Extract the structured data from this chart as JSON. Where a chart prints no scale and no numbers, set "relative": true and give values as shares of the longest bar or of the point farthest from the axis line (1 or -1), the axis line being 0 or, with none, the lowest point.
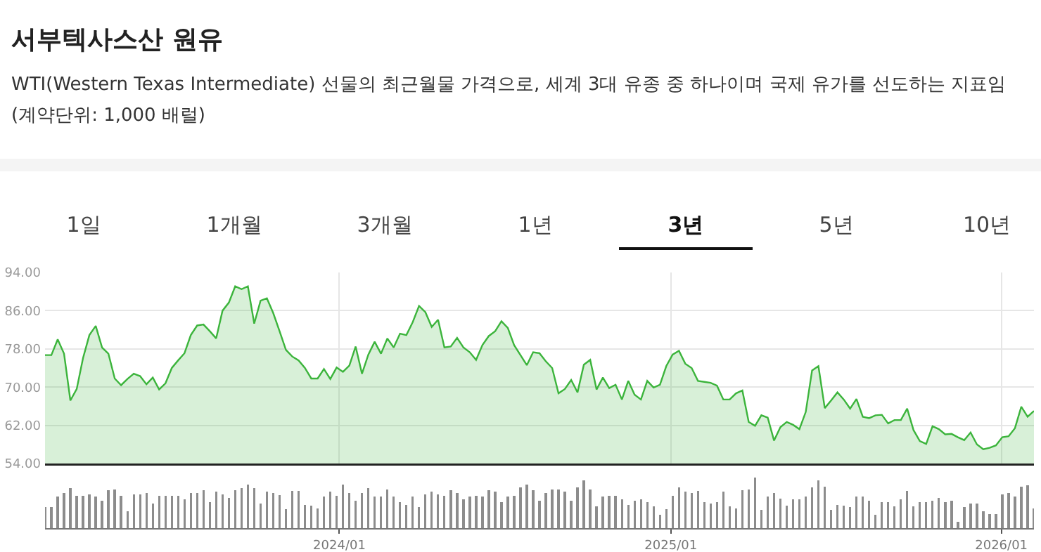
{
  "chart_data": [
    {
      "type": "area",
      "title": "서부텍사스산 원유",
      "subtitle": "WTI(Western Texas Intermediate) 선물의 최근월물 가격으로, 세계 3대 유종 중 하나이며 국제 유가를 선도하는 지표임 (계약단위: 1,000 배럴)",
      "annotations": [
        "1일",
        "1개월",
        "3개월",
        "1년",
        "3년",
        "5년",
        "10년"
      ],
      "x": [
        "2023-02-10",
        "2023-02-17",
        "2023-02-24",
        "2023-03-03",
        "2023-03-10",
        "2023-03-17",
        "2023-03-24",
        "2023-03-31",
        "2023-04-07",
        "2023-04-14",
        "2023-04-21",
        "2023-04-28",
        "2023-05-05",
        "2023-05-12",
        "2023-05-19",
        "2023-05-26",
        "2023-06-02",
        "2023-06-09",
        "2023-06-16",
        "2023-06-23",
        "2023-06-30",
        "2023-07-07",
        "2023-07-14",
        "2023-07-21",
        "2023-07-28",
        "2023-08-04",
        "2023-08-11",
        "2023-08-18",
        "2023-08-25",
        "2023-09-01",
        "2023-09-08",
        "2023-09-15",
        "2023-09-22",
        "2023-09-29",
        "2023-10-06",
        "2023-10-13",
        "2023-10-20",
        "2023-10-27",
        "2023-11-03",
        "2023-11-10",
        "2023-11-17",
        "2023-11-24",
        "2023-12-01",
        "2023-12-08",
        "2023-12-15",
        "2023-12-22",
        "2023-12-29",
        "2024-01-05",
        "2024-01-12",
        "2024-01-19",
        "2024-01-26",
        "2024-02-02",
        "2024-02-09",
        "2024-02-16",
        "2024-02-23",
        "2024-03-01",
        "2024-03-08",
        "2024-03-15",
        "2024-03-22",
        "2024-03-29",
        "2024-04-05",
        "2024-04-12",
        "2024-04-19",
        "2024-04-26",
        "2024-05-03",
        "2024-05-10",
        "2024-05-17",
        "2024-05-24",
        "2024-05-31",
        "2024-06-07",
        "2024-06-14",
        "2024-06-21",
        "2024-06-28",
        "2024-07-05",
        "2024-07-12",
        "2024-07-19",
        "2024-07-26",
        "2024-08-02",
        "2024-08-09",
        "2024-08-16",
        "2024-08-23",
        "2024-08-30",
        "2024-09-06",
        "2024-09-13",
        "2024-09-20",
        "2024-09-27",
        "2024-10-04",
        "2024-10-11",
        "2024-10-18",
        "2024-10-25",
        "2024-11-01",
        "2024-11-08",
        "2024-11-15",
        "2024-11-22",
        "2024-11-29",
        "2024-12-06",
        "2024-12-13",
        "2024-12-20",
        "2024-12-27",
        "2025-01-03",
        "2025-01-10",
        "2025-01-17",
        "2025-01-24",
        "2025-01-31",
        "2025-02-07",
        "2025-02-14",
        "2025-02-21",
        "2025-02-28",
        "2025-03-07",
        "2025-03-14",
        "2025-03-21",
        "2025-03-28",
        "2025-04-04",
        "2025-04-11",
        "2025-04-18",
        "2025-04-25",
        "2025-05-02",
        "2025-05-09",
        "2025-05-16",
        "2025-05-23",
        "2025-05-30",
        "2025-06-06",
        "2025-06-13",
        "2025-06-20",
        "2025-06-27",
        "2025-07-04",
        "2025-07-11",
        "2025-07-18",
        "2025-07-25",
        "2025-08-01",
        "2025-08-08",
        "2025-08-15",
        "2025-08-22",
        "2025-08-29",
        "2025-09-05",
        "2025-09-12",
        "2025-09-19",
        "2025-09-26",
        "2025-10-03",
        "2025-10-10",
        "2025-10-17",
        "2025-10-24",
        "2025-10-31",
        "2025-11-07",
        "2025-11-14",
        "2025-11-21",
        "2025-11-28",
        "2025-12-05",
        "2025-12-12",
        "2025-12-19",
        "2025-12-26",
        "2026-01-02",
        "2026-01-09",
        "2026-01-16",
        "2026-01-23",
        "2026-01-30",
        "2026-02-06"
      ],
      "series": [
        {
          "color": "#3cb43c",
          "values": [
            76.7,
            76.7,
            80.0,
            77.0,
            67.2,
            69.6,
            76.1,
            80.9,
            82.8,
            78.3,
            77.0,
            71.8,
            70.4,
            71.7,
            72.8,
            72.3,
            70.6,
            72.0,
            69.5,
            70.8,
            74.0,
            75.6,
            77.1,
            80.9,
            82.9,
            83.1,
            81.7,
            80.2,
            86.0,
            87.7,
            91.1,
            90.5,
            91.1,
            83.3,
            88.1,
            88.6,
            85.5,
            81.7,
            77.8,
            76.4,
            75.6,
            74.0,
            71.8,
            71.8,
            73.8,
            71.7,
            74.1,
            73.2,
            74.5,
            78.5,
            72.8,
            76.8,
            79.5,
            77.0,
            80.2,
            78.3,
            81.2,
            80.9,
            83.6,
            87.0,
            85.7,
            82.6,
            84.1,
            78.3,
            78.5,
            80.3,
            78.3,
            77.3,
            75.7,
            78.8,
            80.7,
            81.7,
            83.8,
            82.4,
            78.8,
            76.7,
            74.6,
            77.3,
            77.1,
            75.4,
            74.0,
            68.7,
            69.6,
            71.5,
            68.9,
            74.7,
            75.7,
            69.5,
            72.0,
            69.8,
            70.5,
            67.4,
            71.3,
            68.4,
            67.4,
            71.3,
            69.9,
            70.5,
            74.4,
            76.8,
            77.6,
            74.9,
            74.0,
            71.3,
            71.1,
            70.9,
            70.3,
            67.4,
            67.4,
            68.7,
            69.3,
            62.7,
            61.9,
            64.1,
            63.6,
            58.8,
            61.6,
            62.7,
            62.1,
            61.2,
            64.8,
            73.5,
            74.4,
            65.6,
            67.2,
            68.9,
            67.4,
            65.5,
            67.5,
            63.8,
            63.5,
            64.1,
            64.2,
            62.4,
            63.1,
            63.1,
            65.5,
            61.0,
            58.7,
            58.1,
            61.8,
            61.2,
            60.1,
            60.2,
            59.5,
            58.9,
            60.5,
            58.0,
            57.0,
            57.3,
            57.8,
            59.5,
            59.7,
            61.4,
            65.9,
            63.8,
            65.0
          ]
        }
      ],
      "xlim": [
        "2023-02-10",
        "2026-02-06"
      ],
      "xticks": [
        {
          "value": "2024-01-01",
          "label": null
        },
        {
          "value": "2025-01-01",
          "label": null
        },
        {
          "value": "2026-01-01",
          "label": null
        }
      ],
      "ylim": [
        54,
        94
      ],
      "yticks": [
        {
          "value": 54,
          "label": "54.00"
        },
        {
          "value": 62,
          "label": "62.00"
        },
        {
          "value": 70,
          "label": "70.00"
        },
        {
          "value": 78,
          "label": "78.00"
        },
        {
          "value": 86,
          "label": "86.00"
        },
        {
          "value": 94,
          "label": "94.00"
        }
      ],
      "grid": true,
      "tick_labels": "y"
    },
    {
      "type": "bar",
      "relative": true,
      "tick_labels": "x",
      "x": [
        "2023-02-10",
        "2023-02-17",
        "2023-02-24",
        "2023-03-03",
        "2023-03-10",
        "2023-03-17",
        "2023-03-24",
        "2023-03-31",
        "2023-04-07",
        "2023-04-14",
        "2023-04-21",
        "2023-04-28",
        "2023-05-05",
        "2023-05-12",
        "2023-05-19",
        "2023-05-26",
        "2023-06-02",
        "2023-06-09",
        "2023-06-16",
        "2023-06-23",
        "2023-06-30",
        "2023-07-07",
        "2023-07-14",
        "2023-07-21",
        "2023-07-28",
        "2023-08-04",
        "2023-08-11",
        "2023-08-18",
        "2023-08-25",
        "2023-09-01",
        "2023-09-08",
        "2023-09-15",
        "2023-09-22",
        "2023-09-29",
        "2023-10-06",
        "2023-10-13",
        "2023-10-20",
        "2023-10-27",
        "2023-11-03",
        "2023-11-10",
        "2023-11-17",
        "2023-11-24",
        "2023-12-01",
        "2023-12-08",
        "2023-12-15",
        "2023-12-22",
        "2023-12-29",
        "2024-01-05",
        "2024-01-12",
        "2024-01-19",
        "2024-01-26",
        "2024-02-02",
        "2024-02-09",
        "2024-02-16",
        "2024-02-23",
        "2024-03-01",
        "2024-03-08",
        "2024-03-15",
        "2024-03-22",
        "2024-03-29",
        "2024-04-05",
        "2024-04-12",
        "2024-04-19",
        "2024-04-26",
        "2024-05-03",
        "2024-05-10",
        "2024-05-17",
        "2024-05-24",
        "2024-05-31",
        "2024-06-07",
        "2024-06-14",
        "2024-06-21",
        "2024-06-28",
        "2024-07-05",
        "2024-07-12",
        "2024-07-19",
        "2024-07-26",
        "2024-08-02",
        "2024-08-09",
        "2024-08-16",
        "2024-08-23",
        "2024-08-30",
        "2024-09-06",
        "2024-09-13",
        "2024-09-20",
        "2024-09-27",
        "2024-10-04",
        "2024-10-11",
        "2024-10-18",
        "2024-10-25",
        "2024-11-01",
        "2024-11-08",
        "2024-11-15",
        "2024-11-22",
        "2024-11-29",
        "2024-12-06",
        "2024-12-13",
        "2024-12-20",
        "2024-12-27",
        "2025-01-03",
        "2025-01-10",
        "2025-01-17",
        "2025-01-24",
        "2025-01-31",
        "2025-02-07",
        "2025-02-14",
        "2025-02-21",
        "2025-02-28",
        "2025-03-07",
        "2025-03-14",
        "2025-03-21",
        "2025-03-28",
        "2025-04-04",
        "2025-04-11",
        "2025-04-18",
        "2025-04-25",
        "2025-05-02",
        "2025-05-09",
        "2025-05-16",
        "2025-05-23",
        "2025-05-30",
        "2025-06-06",
        "2025-06-13",
        "2025-06-20",
        "2025-06-27",
        "2025-07-04",
        "2025-07-11",
        "2025-07-18",
        "2025-07-25",
        "2025-08-01",
        "2025-08-08",
        "2025-08-15",
        "2025-08-22",
        "2025-08-29",
        "2025-09-05",
        "2025-09-12",
        "2025-09-19",
        "2025-09-26",
        "2025-10-03",
        "2025-10-10",
        "2025-10-17",
        "2025-10-24",
        "2025-10-31",
        "2025-11-07",
        "2025-11-14",
        "2025-11-21",
        "2025-11-28",
        "2025-12-05",
        "2025-12-12",
        "2025-12-19",
        "2025-12-26",
        "2026-01-02",
        "2026-01-09",
        "2026-01-16",
        "2026-01-23",
        "2026-01-30",
        "2026-02-06"
      ],
      "series": [
        {
          "color": "#8c8c8c",
          "values": [
            0.41,
            0.41,
            0.62,
            0.7,
            0.79,
            0.64,
            0.64,
            0.67,
            0.62,
            0.54,
            0.75,
            0.77,
            0.64,
            0.34,
            0.67,
            0.67,
            0.7,
            0.49,
            0.64,
            0.64,
            0.64,
            0.64,
            0.57,
            0.7,
            0.7,
            0.75,
            0.52,
            0.72,
            0.67,
            0.6,
            0.75,
            0.79,
            0.86,
            0.79,
            0.49,
            0.72,
            0.7,
            0.65,
            0.38,
            0.74,
            0.74,
            0.46,
            0.44,
            0.39,
            0.62,
            0.72,
            0.64,
            0.86,
            0.7,
            0.54,
            0.7,
            0.79,
            0.62,
            0.62,
            0.77,
            0.62,
            0.52,
            0.46,
            0.62,
            0.41,
            0.67,
            0.72,
            0.67,
            0.64,
            0.75,
            0.7,
            0.57,
            0.62,
            0.64,
            0.62,
            0.75,
            0.72,
            0.52,
            0.62,
            0.64,
            0.8,
            0.86,
            0.75,
            0.54,
            0.7,
            0.77,
            0.77,
            0.72,
            0.54,
            0.8,
            0.95,
            0.77,
            0.43,
            0.62,
            0.64,
            0.64,
            0.57,
            0.46,
            0.54,
            0.57,
            0.52,
            0.43,
            0.26,
            0.38,
            0.64,
            0.8,
            0.72,
            0.7,
            0.74,
            0.52,
            0.49,
            0.52,
            0.72,
            0.43,
            0.39,
            0.75,
            0.77,
            1,
            0.36,
            0.62,
            0.69,
            0.59,
            0.44,
            0.57,
            0.57,
            0.62,
            0.8,
            0.95,
            0.82,
            0.36,
            0.46,
            0.44,
            0.41,
            0.62,
            0.62,
            0.54,
            0.26,
            0.52,
            0.52,
            0.43,
            0.57,
            0.74,
            0.43,
            0.52,
            0.52,
            0.54,
            0.6,
            0.52,
            0.54,
            0.12,
            0.41,
            0.49,
            0.49,
            0.34,
            0.28,
            0.28,
            0.67,
            0.7,
            0.62,
            0.82,
            0.85,
            0.39
          ]
        }
      ],
      "xlim": [
        "2023-02-10",
        "2026-02-06"
      ],
      "xticks": [
        {
          "value": "2024-01-01",
          "label": "2024/01"
        },
        {
          "value": "2025-01-01",
          "label": "2025/01"
        },
        {
          "value": "2026-01-01",
          "label": "2026/01"
        }
      ],
      "grid": false
    }
  ]
}
